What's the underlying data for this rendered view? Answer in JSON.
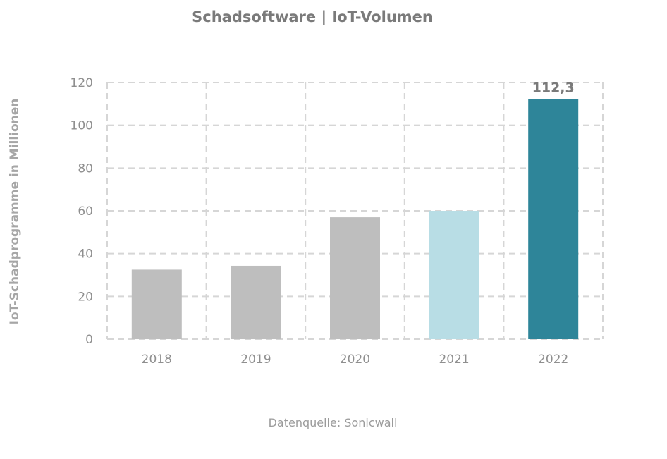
{
  "chart_data": {
    "type": "bar",
    "title": "Schadsoftware | IoT-Volumen",
    "xlabel": "",
    "ylabel": "IoT-Schadprogramme in Millionen",
    "categories": [
      "2018",
      "2019",
      "2020",
      "2021",
      "2022"
    ],
    "values": [
      32.5,
      34.3,
      57,
      60,
      112.3
    ],
    "bar_colors": [
      "#bebebe",
      "#bebebe",
      "#bebebe",
      "#b8dde5",
      "#2e8599"
    ],
    "data_labels": [
      "",
      "",
      "",
      "",
      "112,3"
    ],
    "ylim": [
      0,
      120
    ],
    "yticks": [
      "0",
      "20",
      "40",
      "60",
      "80",
      "100",
      "120"
    ],
    "grid": true,
    "grid_style": "dashed",
    "legend": "none",
    "source": "Datenquelle: Sonicwall"
  }
}
